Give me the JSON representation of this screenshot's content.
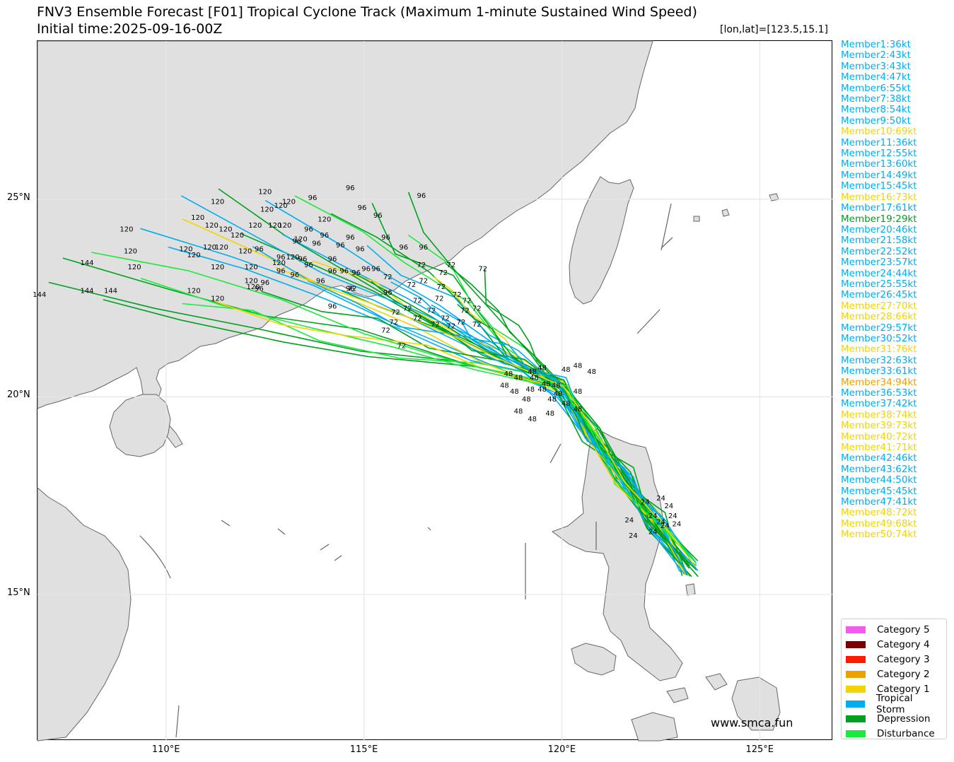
{
  "title": "FNV3 Ensemble Forecast [F01] Tropical Cyclone Track (Maximum 1-minute Sustained Wind Speed)",
  "subtitle": "Initial time:2025-09-16-00Z",
  "coord_readout": "[lon,lat]=[123.5,15.1]",
  "map": {
    "lon_range": [
      106.75,
      126.85
    ],
    "lat_range": [
      11.3,
      29.0
    ],
    "lat_ticks": [
      {
        "value": 25,
        "label": "25°N"
      },
      {
        "value": 20,
        "label": "20°N"
      },
      {
        "value": 15,
        "label": "15°N"
      }
    ],
    "lon_ticks": [
      {
        "value": 110,
        "label": "110°E"
      },
      {
        "value": 115,
        "label": "115°E"
      },
      {
        "value": 120,
        "label": "120°E"
      },
      {
        "value": 125,
        "label": "125°E"
      }
    ],
    "colors": {
      "land": "#e0e0e0",
      "coast": "#666666",
      "grid": "#e6e6e6"
    }
  },
  "members": [
    {
      "label": "Member1:36kt",
      "color": "#00aeef"
    },
    {
      "label": "Member2:43kt",
      "color": "#00aeef"
    },
    {
      "label": "Member3:43kt",
      "color": "#00aeef"
    },
    {
      "label": "Member4:47kt",
      "color": "#00aeef"
    },
    {
      "label": "Member6:55kt",
      "color": "#00aeef"
    },
    {
      "label": "Member7:38kt",
      "color": "#00aeef"
    },
    {
      "label": "Member8:54kt",
      "color": "#00aeef"
    },
    {
      "label": "Member9:50kt",
      "color": "#00aeef"
    },
    {
      "label": "Member10:69kt",
      "color": "#f2d400"
    },
    {
      "label": "Member11:36kt",
      "color": "#00aeef"
    },
    {
      "label": "Member12:55kt",
      "color": "#00aeef"
    },
    {
      "label": "Member13:60kt",
      "color": "#00aeef"
    },
    {
      "label": "Member14:49kt",
      "color": "#00aeef"
    },
    {
      "label": "Member15:45kt",
      "color": "#00aeef"
    },
    {
      "label": "Member16:73kt",
      "color": "#f2d400"
    },
    {
      "label": "Member17:61kt",
      "color": "#00aeef"
    },
    {
      "label": "Member19:29kt",
      "color": "#00a020"
    },
    {
      "label": "Member20:46kt",
      "color": "#00aeef"
    },
    {
      "label": "Member21:58kt",
      "color": "#00aeef"
    },
    {
      "label": "Member22:52kt",
      "color": "#00aeef"
    },
    {
      "label": "Member23:57kt",
      "color": "#00aeef"
    },
    {
      "label": "Member24:44kt",
      "color": "#00aeef"
    },
    {
      "label": "Member25:55kt",
      "color": "#00aeef"
    },
    {
      "label": "Member26:45kt",
      "color": "#00aeef"
    },
    {
      "label": "Member27:70kt",
      "color": "#f2d400"
    },
    {
      "label": "Member28:66kt",
      "color": "#f2d400"
    },
    {
      "label": "Member29:57kt",
      "color": "#00aeef"
    },
    {
      "label": "Member30:52kt",
      "color": "#00aeef"
    },
    {
      "label": "Member31:76kt",
      "color": "#f2d400"
    },
    {
      "label": "Member32:63kt",
      "color": "#00aeef"
    },
    {
      "label": "Member33:61kt",
      "color": "#00aeef"
    },
    {
      "label": "Member34:94kt",
      "color": "#eda100"
    },
    {
      "label": "Member36:53kt",
      "color": "#00aeef"
    },
    {
      "label": "Member37:42kt",
      "color": "#00aeef"
    },
    {
      "label": "Member38:74kt",
      "color": "#f2d400"
    },
    {
      "label": "Member39:73kt",
      "color": "#f2d400"
    },
    {
      "label": "Member40:72kt",
      "color": "#f2d400"
    },
    {
      "label": "Member41:71kt",
      "color": "#f2d400"
    },
    {
      "label": "Member42:46kt",
      "color": "#00aeef"
    },
    {
      "label": "Member43:62kt",
      "color": "#00aeef"
    },
    {
      "label": "Member44:50kt",
      "color": "#00aeef"
    },
    {
      "label": "Member45:45kt",
      "color": "#00aeef"
    },
    {
      "label": "Member47:41kt",
      "color": "#00aeef"
    },
    {
      "label": "Member48:72kt",
      "color": "#f2d400"
    },
    {
      "label": "Member49:68kt",
      "color": "#f2d400"
    },
    {
      "label": "Member50:74kt",
      "color": "#f2d400"
    }
  ],
  "legend": [
    {
      "label": "Category 5",
      "color": "#f25af0"
    },
    {
      "label": "Category 4",
      "color": "#7a0000"
    },
    {
      "label": "Category 3",
      "color": "#ff1a00"
    },
    {
      "label": "Category 2",
      "color": "#eda100"
    },
    {
      "label": "Category 1",
      "color": "#f2d400"
    },
    {
      "label": "Tropical Storm",
      "color": "#00aeef"
    },
    {
      "label": "Depression",
      "color": "#00a020"
    },
    {
      "label": "Disturbance",
      "color": "#1de93c"
    }
  ],
  "hour_labels": [
    {
      "text": "24",
      "lon": 122.1,
      "lat": 17.35
    },
    {
      "text": "24",
      "lon": 122.5,
      "lat": 17.45
    },
    {
      "text": "24",
      "lon": 122.7,
      "lat": 17.25
    },
    {
      "text": "24",
      "lon": 122.8,
      "lat": 17.0
    },
    {
      "text": "24",
      "lon": 122.3,
      "lat": 17.0
    },
    {
      "text": "24",
      "lon": 122.5,
      "lat": 16.85
    },
    {
      "text": "24",
      "lon": 121.7,
      "lat": 16.9
    },
    {
      "text": "24",
      "lon": 122.9,
      "lat": 16.8
    },
    {
      "text": "24",
      "lon": 122.6,
      "lat": 16.75
    },
    {
      "text": "24",
      "lon": 122.3,
      "lat": 16.6
    },
    {
      "text": "24",
      "lon": 121.8,
      "lat": 16.5
    },
    {
      "text": "48",
      "lon": 120.4,
      "lat": 20.8
    },
    {
      "text": "48",
      "lon": 120.1,
      "lat": 20.7
    },
    {
      "text": "48",
      "lon": 120.75,
      "lat": 20.65
    },
    {
      "text": "48",
      "lon": 119.5,
      "lat": 20.75
    },
    {
      "text": "48",
      "lon": 119.25,
      "lat": 20.65
    },
    {
      "text": "48",
      "lon": 118.65,
      "lat": 20.6
    },
    {
      "text": "48",
      "lon": 118.9,
      "lat": 20.5
    },
    {
      "text": "48",
      "lon": 119.3,
      "lat": 20.5
    },
    {
      "text": "48",
      "lon": 119.6,
      "lat": 20.35
    },
    {
      "text": "48",
      "lon": 119.85,
      "lat": 20.3
    },
    {
      "text": "48",
      "lon": 118.55,
      "lat": 20.3
    },
    {
      "text": "48",
      "lon": 118.8,
      "lat": 20.15
    },
    {
      "text": "48",
      "lon": 119.2,
      "lat": 20.2
    },
    {
      "text": "48",
      "lon": 119.5,
      "lat": 20.2
    },
    {
      "text": "48",
      "lon": 119.9,
      "lat": 20.1
    },
    {
      "text": "48",
      "lon": 120.4,
      "lat": 20.15
    },
    {
      "text": "48",
      "lon": 119.1,
      "lat": 19.95
    },
    {
      "text": "48",
      "lon": 119.75,
      "lat": 19.95
    },
    {
      "text": "48",
      "lon": 120.1,
      "lat": 19.85
    },
    {
      "text": "48",
      "lon": 120.4,
      "lat": 19.7
    },
    {
      "text": "48",
      "lon": 118.9,
      "lat": 19.65
    },
    {
      "text": "48",
      "lon": 119.25,
      "lat": 19.45
    },
    {
      "text": "48",
      "lon": 119.7,
      "lat": 19.6
    },
    {
      "text": "72",
      "lon": 116.45,
      "lat": 23.35
    },
    {
      "text": "72",
      "lon": 117.2,
      "lat": 23.35
    },
    {
      "text": "72",
      "lon": 117.0,
      "lat": 23.15
    },
    {
      "text": "72",
      "lon": 118.0,
      "lat": 23.25
    },
    {
      "text": "72",
      "lon": 115.6,
      "lat": 23.05
    },
    {
      "text": "72",
      "lon": 116.5,
      "lat": 22.95
    },
    {
      "text": "72",
      "lon": 116.2,
      "lat": 22.85
    },
    {
      "text": "72",
      "lon": 116.95,
      "lat": 22.8
    },
    {
      "text": "72",
      "lon": 117.35,
      "lat": 22.6
    },
    {
      "text": "72",
      "lon": 116.35,
      "lat": 22.45
    },
    {
      "text": "72",
      "lon": 116.9,
      "lat": 22.5
    },
    {
      "text": "72",
      "lon": 117.6,
      "lat": 22.45
    },
    {
      "text": "72",
      "lon": 116.1,
      "lat": 22.25
    },
    {
      "text": "72",
      "lon": 116.7,
      "lat": 22.2
    },
    {
      "text": "72",
      "lon": 117.55,
      "lat": 22.2
    },
    {
      "text": "72",
      "lon": 117.85,
      "lat": 22.25
    },
    {
      "text": "72",
      "lon": 115.8,
      "lat": 22.15
    },
    {
      "text": "72",
      "lon": 116.35,
      "lat": 22.0
    },
    {
      "text": "72",
      "lon": 117.05,
      "lat": 22.0
    },
    {
      "text": "72",
      "lon": 115.75,
      "lat": 21.9
    },
    {
      "text": "72",
      "lon": 116.8,
      "lat": 21.85
    },
    {
      "text": "72",
      "lon": 117.45,
      "lat": 21.9
    },
    {
      "text": "72",
      "lon": 117.85,
      "lat": 21.85
    },
    {
      "text": "72",
      "lon": 115.55,
      "lat": 21.7
    },
    {
      "text": "72",
      "lon": 117.2,
      "lat": 21.8
    },
    {
      "text": "72",
      "lon": 115.95,
      "lat": 21.3
    },
    {
      "text": "72",
      "lon": 114.7,
      "lat": 22.75
    },
    {
      "text": "96",
      "lon": 114.65,
      "lat": 25.3
    },
    {
      "text": "96",
      "lon": 113.7,
      "lat": 25.05
    },
    {
      "text": "96",
      "lon": 114.95,
      "lat": 24.8
    },
    {
      "text": "96",
      "lon": 116.45,
      "lat": 25.1
    },
    {
      "text": "96",
      "lon": 115.35,
      "lat": 24.6
    },
    {
      "text": "96",
      "lon": 115.55,
      "lat": 24.05
    },
    {
      "text": "96",
      "lon": 114.65,
      "lat": 24.05
    },
    {
      "text": "96",
      "lon": 113.6,
      "lat": 24.25
    },
    {
      "text": "96",
      "lon": 116.0,
      "lat": 23.8
    },
    {
      "text": "96",
      "lon": 116.5,
      "lat": 23.8
    },
    {
      "text": "96",
      "lon": 112.35,
      "lat": 23.75
    },
    {
      "text": "96",
      "lon": 112.9,
      "lat": 23.55
    },
    {
      "text": "96",
      "lon": 113.45,
      "lat": 23.5
    },
    {
      "text": "96",
      "lon": 113.8,
      "lat": 23.9
    },
    {
      "text": "96",
      "lon": 114.4,
      "lat": 23.85
    },
    {
      "text": "96",
      "lon": 114.9,
      "lat": 23.75
    },
    {
      "text": "96",
      "lon": 113.6,
      "lat": 23.35
    },
    {
      "text": "96",
      "lon": 114.2,
      "lat": 23.5
    },
    {
      "text": "96",
      "lon": 114.5,
      "lat": 23.2
    },
    {
      "text": "96",
      "lon": 114.2,
      "lat": 23.2
    },
    {
      "text": "96",
      "lon": 114.8,
      "lat": 23.15
    },
    {
      "text": "96",
      "lon": 115.05,
      "lat": 23.25
    },
    {
      "text": "96",
      "lon": 115.3,
      "lat": 23.25
    },
    {
      "text": "96",
      "lon": 113.25,
      "lat": 23.1
    },
    {
      "text": "96",
      "lon": 112.9,
      "lat": 23.2
    },
    {
      "text": "96",
      "lon": 113.9,
      "lat": 22.95
    },
    {
      "text": "96",
      "lon": 112.5,
      "lat": 22.9
    },
    {
      "text": "96",
      "lon": 112.35,
      "lat": 22.75
    },
    {
      "text": "96",
      "lon": 114.65,
      "lat": 22.75
    },
    {
      "text": "96",
      "lon": 115.6,
      "lat": 22.65
    },
    {
      "text": "96",
      "lon": 113.3,
      "lat": 23.95
    },
    {
      "text": "96",
      "lon": 114.0,
      "lat": 24.1
    },
    {
      "text": "96",
      "lon": 114.2,
      "lat": 22.3
    },
    {
      "text": "120",
      "lon": 112.5,
      "lat": 25.2
    },
    {
      "text": "120",
      "lon": 111.3,
      "lat": 24.95
    },
    {
      "text": "120",
      "lon": 113.1,
      "lat": 24.95
    },
    {
      "text": "120",
      "lon": 112.9,
      "lat": 24.85
    },
    {
      "text": "120",
      "lon": 112.55,
      "lat": 24.75
    },
    {
      "text": "120",
      "lon": 110.8,
      "lat": 24.55
    },
    {
      "text": "120",
      "lon": 111.15,
      "lat": 24.35
    },
    {
      "text": "120",
      "lon": 111.5,
      "lat": 24.25
    },
    {
      "text": "120",
      "lon": 111.8,
      "lat": 24.1
    },
    {
      "text": "120",
      "lon": 112.25,
      "lat": 24.35
    },
    {
      "text": "120",
      "lon": 112.75,
      "lat": 24.35
    },
    {
      "text": "120",
      "lon": 113.0,
      "lat": 24.35
    },
    {
      "text": "120",
      "lon": 114.0,
      "lat": 24.5
    },
    {
      "text": "120",
      "lon": 109.0,
      "lat": 24.25
    },
    {
      "text": "120",
      "lon": 110.5,
      "lat": 23.75
    },
    {
      "text": "120",
      "lon": 110.7,
      "lat": 23.6
    },
    {
      "text": "120",
      "lon": 109.1,
      "lat": 23.7
    },
    {
      "text": "120",
      "lon": 111.1,
      "lat": 23.8
    },
    {
      "text": "120",
      "lon": 111.4,
      "lat": 23.8
    },
    {
      "text": "120",
      "lon": 112.0,
      "lat": 23.7
    },
    {
      "text": "120",
      "lon": 113.4,
      "lat": 24.0
    },
    {
      "text": "120",
      "lon": 113.2,
      "lat": 23.55
    },
    {
      "text": "120",
      "lon": 109.2,
      "lat": 23.3
    },
    {
      "text": "120",
      "lon": 111.3,
      "lat": 23.3
    },
    {
      "text": "120",
      "lon": 112.15,
      "lat": 23.3
    },
    {
      "text": "120",
      "lon": 112.85,
      "lat": 23.4
    },
    {
      "text": "120",
      "lon": 112.15,
      "lat": 22.95
    },
    {
      "text": "120",
      "lon": 112.2,
      "lat": 22.8
    },
    {
      "text": "120",
      "lon": 110.7,
      "lat": 22.7
    },
    {
      "text": "120",
      "lon": 111.3,
      "lat": 22.5
    },
    {
      "text": "144",
      "lon": 108.0,
      "lat": 23.4
    },
    {
      "text": "144",
      "lon": 108.0,
      "lat": 22.7
    },
    {
      "text": "144",
      "lon": 108.6,
      "lat": 22.7
    },
    {
      "text": "144",
      "lon": 106.8,
      "lat": 22.6
    }
  ],
  "watermark": "www.smca.fun"
}
